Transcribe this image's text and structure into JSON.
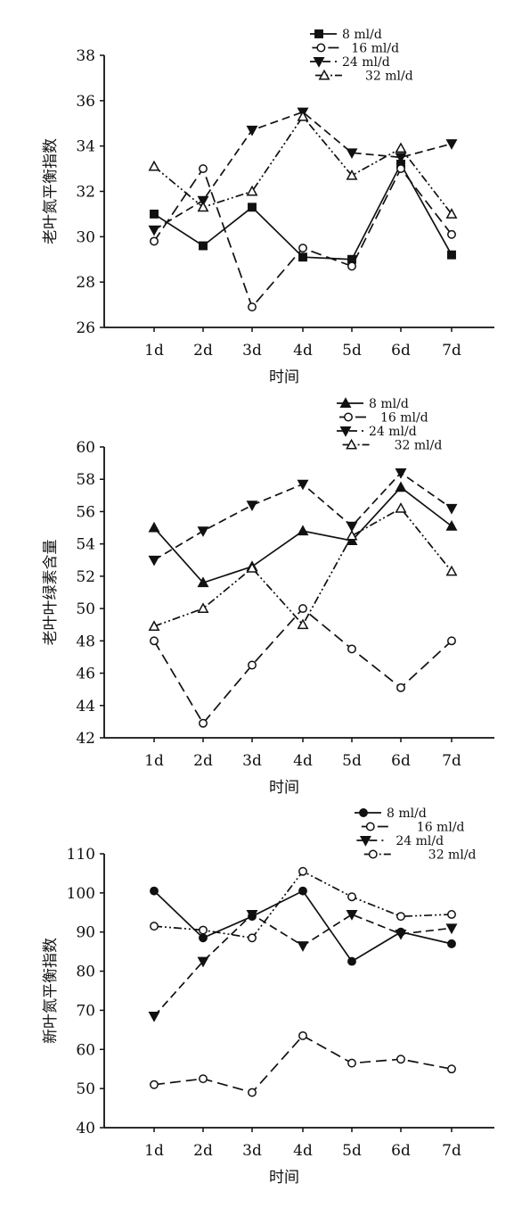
{
  "chart_data": [
    {
      "type": "line",
      "categories": [
        "1d",
        "2d",
        "3d",
        "4d",
        "5d",
        "6d",
        "7d"
      ],
      "xlabel": "时间",
      "ylabel": "老叶氮平衡指数",
      "ylim": [
        26,
        38
      ],
      "yticks": [
        "26",
        "28",
        "30",
        "32",
        "34",
        "36",
        "38"
      ],
      "grid": false,
      "legend_position": "top-right",
      "series": [
        {
          "name": "8 ml/d",
          "marker": "square-filled",
          "dash": "solid",
          "values": [
            31.0,
            29.6,
            31.3,
            29.1,
            29.0,
            33.2,
            29.2
          ]
        },
        {
          "name": "16 ml/d",
          "marker": "circle-open",
          "dash": "long-dash",
          "values": [
            29.8,
            33.0,
            26.9,
            29.5,
            28.7,
            33.0,
            30.1
          ]
        },
        {
          "name": "24 ml/d",
          "marker": "triangle-down-filled",
          "dash": "dash",
          "values": [
            30.3,
            31.6,
            34.7,
            35.5,
            33.7,
            33.5,
            34.1
          ]
        },
        {
          "name": "32 ml/d",
          "marker": "triangle-up-open",
          "dash": "dash-dot-dot",
          "values": [
            33.1,
            31.3,
            32.0,
            35.3,
            32.7,
            33.9,
            31.0
          ]
        }
      ]
    },
    {
      "type": "line",
      "categories": [
        "1d",
        "2d",
        "3d",
        "4d",
        "5d",
        "6d",
        "7d"
      ],
      "xlabel": "时间",
      "ylabel": "老叶叶绿素含量",
      "ylim": [
        42,
        60
      ],
      "yticks": [
        "42",
        "44",
        "46",
        "48",
        "50",
        "52",
        "54",
        "56",
        "58",
        "60"
      ],
      "grid": false,
      "legend_position": "top-right",
      "series": [
        {
          "name": "8 ml/d",
          "marker": "triangle-up-filled",
          "dash": "solid",
          "values": [
            55.0,
            51.6,
            52.6,
            54.8,
            54.2,
            57.5,
            55.1
          ]
        },
        {
          "name": "16 ml/d",
          "marker": "circle-open",
          "dash": "long-dash",
          "values": [
            48.0,
            42.9,
            46.5,
            50.0,
            47.5,
            45.1,
            48.0
          ]
        },
        {
          "name": "24 ml/d",
          "marker": "triangle-down-filled",
          "dash": "dash",
          "values": [
            53.0,
            54.8,
            56.4,
            57.7,
            55.1,
            58.4,
            56.2
          ]
        },
        {
          "name": "32 ml/d",
          "marker": "triangle-up-open",
          "dash": "dash-dot-dot",
          "values": [
            48.9,
            50.0,
            52.5,
            49.0,
            54.5,
            56.2,
            52.3
          ]
        }
      ]
    },
    {
      "type": "line",
      "categories": [
        "1d",
        "2d",
        "3d",
        "4d",
        "5d",
        "6d",
        "7d"
      ],
      "xlabel": "时间",
      "ylabel": "新叶氮平衡指数",
      "ylim": [
        40,
        110
      ],
      "yticks": [
        "40",
        "50",
        "60",
        "70",
        "80",
        "90",
        "100",
        "110"
      ],
      "grid": false,
      "legend_position": "top-right",
      "series": [
        {
          "name": "8 ml/d",
          "marker": "circle-filled",
          "dash": "solid",
          "values": [
            100.5,
            88.5,
            94.0,
            100.5,
            82.5,
            90.0,
            87.0
          ]
        },
        {
          "name": "16 ml/d",
          "marker": "circle-open",
          "dash": "long-dash",
          "values": [
            51.0,
            52.5,
            49.0,
            63.5,
            56.5,
            57.5,
            55.0
          ]
        },
        {
          "name": "24 ml/d",
          "marker": "triangle-down-filled",
          "dash": "dash",
          "values": [
            68.5,
            82.5,
            94.5,
            86.5,
            94.5,
            89.5,
            91.0
          ]
        },
        {
          "name": "32 ml/d",
          "marker": "circle-open",
          "dash": "dash-dot-dot",
          "values": [
            91.5,
            90.5,
            88.5,
            105.5,
            99.0,
            94.0,
            94.5
          ]
        }
      ]
    }
  ]
}
